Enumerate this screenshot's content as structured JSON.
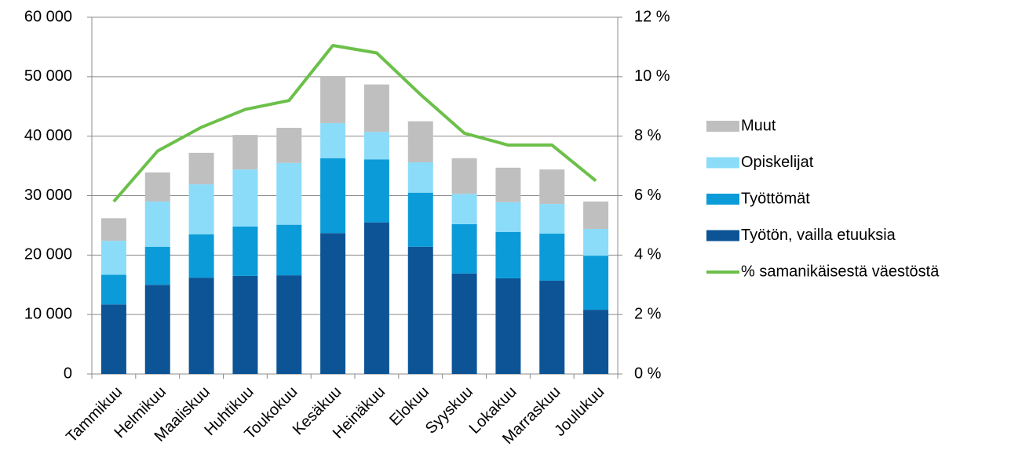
{
  "chart_data": {
    "type": "bar",
    "categories": [
      "Tammikuu",
      "Helmikuu",
      "Maaliskuu",
      "Huhtikuu",
      "Toukokuu",
      "Kesäkuu",
      "Heinäkuu",
      "Elokuu",
      "Syyskuu",
      "Lokakuu",
      "Marraskuu",
      "Joulukuu"
    ],
    "stacked": true,
    "series": [
      {
        "name": "Työtön, vailla etuuksia",
        "color": "#0d5496",
        "values": [
          11700,
          15000,
          16200,
          16500,
          16600,
          23700,
          25500,
          21400,
          16900,
          16100,
          15700,
          10800
        ]
      },
      {
        "name": "Työttömät",
        "color": "#0a9bd8",
        "values": [
          5000,
          6400,
          7300,
          8300,
          8500,
          12600,
          10600,
          9100,
          8300,
          7800,
          7900,
          9100
        ]
      },
      {
        "name": "Opiskelijat",
        "color": "#8adcf9",
        "values": [
          5700,
          7600,
          8400,
          9600,
          10400,
          5900,
          4600,
          5100,
          5100,
          5000,
          5000,
          4500
        ]
      },
      {
        "name": "Muut",
        "color": "#bfbfbf",
        "values": [
          3800,
          4900,
          5300,
          5800,
          5900,
          7800,
          8000,
          6900,
          6000,
          5800,
          5800,
          4600
        ]
      },
      {
        "name": "% samanikäisestä väestöstä",
        "color": "#6cc04a",
        "type": "line",
        "axis": "y2",
        "values": [
          5.8,
          7.5,
          8.3,
          8.9,
          9.2,
          11.05,
          10.8,
          9.4,
          8.1,
          7.7,
          7.7,
          6.5
        ]
      }
    ],
    "ylim": [
      0,
      60000
    ],
    "yticks": [
      0,
      {
        "value": 10000,
        "label": "10 000"
      },
      {
        "value": 20000,
        "label": "20 000"
      },
      {
        "value": 30000,
        "label": "30 000"
      },
      {
        "value": 40000,
        "label": "40 000"
      },
      {
        "value": 50000,
        "label": "50 000"
      },
      {
        "value": 60000,
        "label": "60 000"
      }
    ],
    "y2lim": [
      0,
      12
    ],
    "y2ticks": [
      {
        "value": 0,
        "label": "0 %"
      },
      {
        "value": 2,
        "label": "2 %"
      },
      {
        "value": 4,
        "label": "4 %"
      },
      {
        "value": 6,
        "label": "6 %"
      },
      {
        "value": 8,
        "label": "8 %"
      },
      {
        "value": 10,
        "label": "10 %"
      },
      {
        "value": 12,
        "label": "12 %"
      }
    ],
    "grid": true,
    "legend": "right"
  }
}
